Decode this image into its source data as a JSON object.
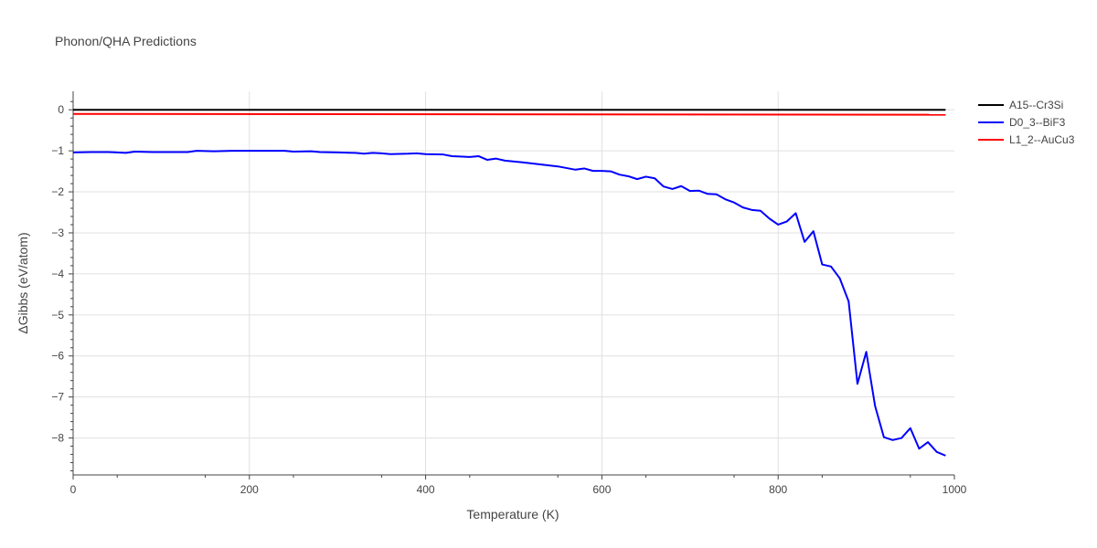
{
  "chart_data": {
    "type": "line",
    "title": "Phonon/QHA Predictions",
    "xlabel": "Temperature (K)",
    "ylabel": "ΔGibbs (eV/atom)",
    "xlim": [
      0,
      1000
    ],
    "ylim": [
      -8.9,
      0.45
    ],
    "x_ticks": [
      0,
      200,
      400,
      600,
      800,
      1000
    ],
    "x_tick_labels": [
      "0",
      "200",
      "400",
      "600",
      "800",
      "1000"
    ],
    "y_ticks": [
      0,
      -1,
      -2,
      -3,
      -4,
      -5,
      -6,
      -7,
      -8
    ],
    "y_tick_labels": [
      "0",
      "−1",
      "−2",
      "−3",
      "−4",
      "−5",
      "−6",
      "−7",
      "−8"
    ],
    "grid": true,
    "legend_position": "top-right",
    "series": [
      {
        "name": "A15--Cr3Si",
        "color": "#000000",
        "x": [
          0,
          990
        ],
        "y": [
          0,
          0
        ]
      },
      {
        "name": "D0_3--BiF3",
        "color": "#0000ff",
        "x": [
          0,
          20,
          40,
          60,
          70,
          90,
          110,
          130,
          140,
          160,
          180,
          200,
          220,
          240,
          250,
          270,
          280,
          300,
          320,
          330,
          340,
          350,
          360,
          380,
          390,
          400,
          420,
          430,
          450,
          460,
          470,
          480,
          490,
          510,
          530,
          550,
          570,
          580,
          590,
          600,
          610,
          620,
          630,
          640,
          650,
          660,
          670,
          680,
          690,
          700,
          710,
          720,
          730,
          740,
          750,
          760,
          770,
          780,
          790,
          800,
          810,
          820,
          830,
          840,
          850,
          860,
          870,
          880,
          890,
          900,
          910,
          920,
          930,
          940,
          950,
          960,
          970,
          980,
          990
        ],
        "y": [
          -1.04,
          -1.03,
          -1.03,
          -1.05,
          -1.02,
          -1.03,
          -1.03,
          -1.03,
          -1.0,
          -1.01,
          -1.0,
          -1.0,
          -1.0,
          -1.0,
          -1.02,
          -1.01,
          -1.03,
          -1.04,
          -1.05,
          -1.07,
          -1.05,
          -1.06,
          -1.08,
          -1.07,
          -1.06,
          -1.08,
          -1.09,
          -1.13,
          -1.15,
          -1.13,
          -1.22,
          -1.19,
          -1.24,
          -1.28,
          -1.33,
          -1.38,
          -1.46,
          -1.43,
          -1.49,
          -1.49,
          -1.5,
          -1.58,
          -1.62,
          -1.69,
          -1.63,
          -1.67,
          -1.87,
          -1.93,
          -1.86,
          -1.98,
          -1.97,
          -2.05,
          -2.06,
          -2.18,
          -2.26,
          -2.38,
          -2.44,
          -2.46,
          -2.65,
          -2.8,
          -2.72,
          -2.52,
          -3.22,
          -2.96,
          -3.77,
          -3.82,
          -4.11,
          -4.67,
          -6.68,
          -5.9,
          -7.22,
          -7.98,
          -8.05,
          -8.0,
          -7.76,
          -8.26,
          -8.1,
          -8.34,
          -8.43
        ]
      },
      {
        "name": "L1_2--AuCu3",
        "color": "#ff0000",
        "x": [
          0,
          990
        ],
        "y": [
          -0.1,
          -0.12
        ]
      }
    ]
  }
}
